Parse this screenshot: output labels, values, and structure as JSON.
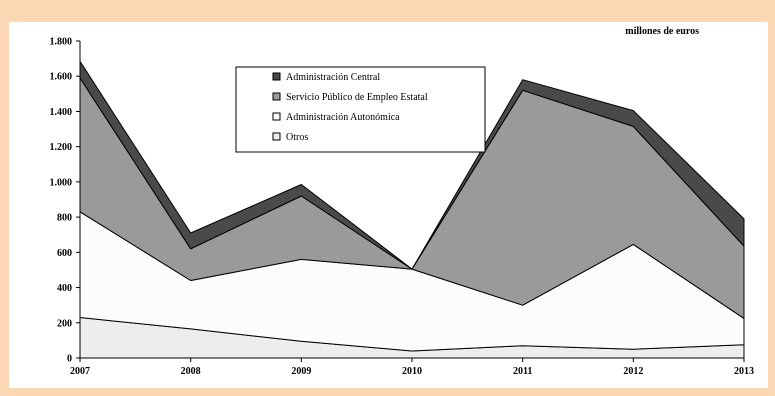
{
  "chart_data": {
    "type": "area",
    "stacked": true,
    "unit_label": "millones de euros",
    "categories": [
      "2007",
      "2008",
      "2009",
      "2010",
      "2011",
      "2012",
      "2013"
    ],
    "ylim": [
      0,
      1800
    ],
    "yticks": [
      0,
      200,
      400,
      600,
      800,
      1000,
      1200,
      1400,
      1600,
      1800
    ],
    "ytick_labels": [
      "0",
      "200",
      "400",
      "600",
      "800",
      "1.000",
      "1.200",
      "1.400",
      "1.600",
      "1.800"
    ],
    "series": [
      {
        "name": "Otros",
        "values": [
          230,
          165,
          95,
          40,
          70,
          50,
          75
        ],
        "color": "#ededed"
      },
      {
        "name": "Administración Autonómica",
        "values": [
          600,
          275,
          465,
          465,
          230,
          595,
          150
        ],
        "color": "#fcfcfc"
      },
      {
        "name": "Servicio Público de Empleo Estatal",
        "values": [
          760,
          180,
          360,
          0,
          1220,
          670,
          410
        ],
        "color": "#9a9a9a"
      },
      {
        "name": "Administración Central",
        "values": [
          95,
          90,
          65,
          0,
          60,
          90,
          155
        ],
        "color": "#4a4a4a"
      }
    ],
    "legend_order": [
      "Administración Central",
      "Servicio Público de Empleo Estatal",
      "Administración Autonómica",
      "Otros"
    ],
    "legend_position": "top-center",
    "grid": false
  }
}
